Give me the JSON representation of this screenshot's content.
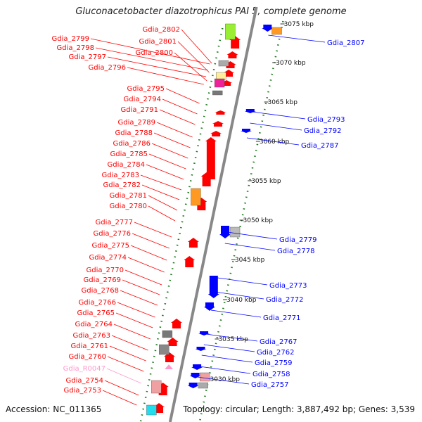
{
  "title": "Gluconacetobacter diazotrophicus PAI 5, complete genome",
  "accession": "Accession: NC_011365",
  "topology": "Topology: circular; Length: 3,887,492 bp; Genes: 3,539",
  "colors": {
    "forward": "#ff0000",
    "reverse": "#0000ff",
    "rna": "#ff99cc",
    "axis": "#888888",
    "tick": "#1a7a1a"
  },
  "kbp_labels": [
    "3075 kbp",
    "3070 kbp",
    "3065 kbp",
    "3060 kbp",
    "3055 kbp",
    "3050 kbp",
    "3045 kbp",
    "3040 kbp",
    "3035 kbp",
    "3030 kbp"
  ],
  "left_labels": [
    "Gdia_2802",
    "Gdia_2801",
    "Gdia_2800",
    "Gdia_2799",
    "Gdia_2798",
    "Gdia_2797",
    "Gdia_2796",
    "Gdia_2795",
    "Gdia_2794",
    "Gdia_2791",
    "Gdia_2789",
    "Gdia_2788",
    "Gdia_2786",
    "Gdia_2785",
    "Gdia_2784",
    "Gdia_2783",
    "Gdia_2782",
    "Gdia_2781",
    "Gdia_2780",
    "Gdia_2777",
    "Gdia_2776",
    "Gdia_2775",
    "Gdia_2774",
    "Gdia_2770",
    "Gdia_2769",
    "Gdia_2768",
    "Gdia_2766",
    "Gdia_2765",
    "Gdia_2764",
    "Gdia_2763",
    "Gdia_2761",
    "Gdia_2760",
    "Gdia_R0047",
    "Gdia_2754",
    "Gdia_2753"
  ],
  "right_labels": [
    "Gdia_2807",
    "Gdia_2793",
    "Gdia_2792",
    "Gdia_2787",
    "Gdia_2779",
    "Gdia_2778",
    "Gdia_2773",
    "Gdia_2772",
    "Gdia_2771",
    "Gdia_2767",
    "Gdia_2762",
    "Gdia_2759",
    "Gdia_2758",
    "Gdia_2757"
  ]
}
